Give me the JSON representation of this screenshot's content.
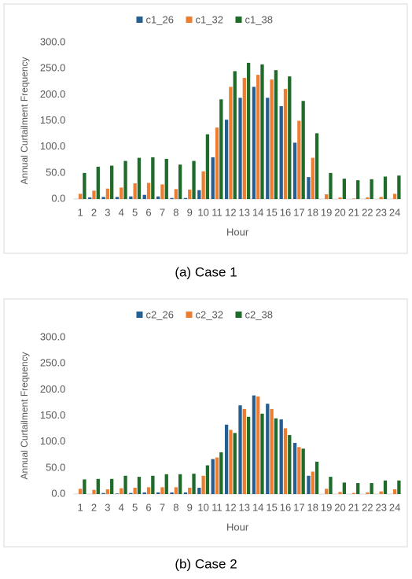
{
  "chart_data": [
    {
      "type": "bar",
      "caption": "(a) Case 1",
      "x_label": "Hour",
      "y_label": "Annual Curtailment Frequency",
      "categories": [
        "1",
        "2",
        "3",
        "4",
        "5",
        "6",
        "7",
        "8",
        "9",
        "10",
        "11",
        "12",
        "13",
        "14",
        "15",
        "16",
        "17",
        "18",
        "19",
        "20",
        "21",
        "22",
        "23",
        "24"
      ],
      "series": [
        {
          "name": "c1_26",
          "color": "#255e91",
          "values": [
            0,
            3,
            4,
            4,
            5,
            8,
            5,
            2,
            2,
            17,
            80,
            152,
            194,
            215,
            194,
            178,
            108,
            42,
            0,
            0,
            0,
            0,
            0,
            0
          ]
        },
        {
          "name": "c1_32",
          "color": "#ed7d31",
          "values": [
            10,
            16,
            20,
            22,
            30,
            31,
            28,
            19,
            18,
            53,
            137,
            215,
            232,
            238,
            229,
            211,
            150,
            79,
            9,
            3,
            1,
            3,
            4,
            10
          ]
        },
        {
          "name": "c1_38",
          "color": "#1e6b2a",
          "values": [
            50,
            62,
            64,
            73,
            79,
            80,
            77,
            66,
            73,
            124,
            191,
            245,
            261,
            258,
            247,
            235,
            188,
            126,
            50,
            39,
            36,
            38,
            43,
            45
          ]
        }
      ],
      "ylim": [
        0,
        300
      ],
      "yticks": [
        {
          "value": 0,
          "label": "0.0"
        },
        {
          "value": 50,
          "label": "50.0"
        },
        {
          "value": 100,
          "label": "100.0"
        },
        {
          "value": 150,
          "label": "150.0"
        },
        {
          "value": 200,
          "label": "200.0"
        },
        {
          "value": 250,
          "label": "250.0"
        },
        {
          "value": 300,
          "label": "300.0"
        }
      ],
      "grid": false,
      "legend": "top"
    },
    {
      "type": "bar",
      "caption": "(b) Case 2",
      "x_label": "Hour",
      "y_label": "Annual Curtailment Frequency",
      "categories": [
        "1",
        "2",
        "3",
        "4",
        "5",
        "6",
        "7",
        "8",
        "9",
        "10",
        "11",
        "12",
        "13",
        "14",
        "15",
        "16",
        "17",
        "18",
        "19",
        "20",
        "21",
        "22",
        "23",
        "24"
      ],
      "series": [
        {
          "name": "c2_26",
          "color": "#255e91",
          "values": [
            0,
            0,
            2,
            1,
            2,
            3,
            3,
            3,
            3,
            12,
            67,
            133,
            170,
            189,
            173,
            143,
            98,
            35,
            0,
            0,
            0,
            0,
            0,
            0
          ]
        },
        {
          "name": "c2_32",
          "color": "#ed7d31",
          "values": [
            10,
            8,
            9,
            11,
            12,
            13,
            13,
            13,
            12,
            35,
            70,
            123,
            163,
            187,
            163,
            126,
            90,
            43,
            10,
            4,
            2,
            3,
            5,
            9
          ]
        },
        {
          "name": "c2_38",
          "color": "#1e6b2a",
          "values": [
            28,
            29,
            29,
            35,
            33,
            35,
            38,
            38,
            39,
            55,
            80,
            117,
            148,
            154,
            145,
            113,
            87,
            62,
            33,
            22,
            21,
            21,
            26,
            26
          ]
        }
      ],
      "ylim": [
        0,
        300
      ],
      "yticks": [
        {
          "value": 0,
          "label": "0.0"
        },
        {
          "value": 50,
          "label": "50.0"
        },
        {
          "value": 100,
          "label": "100.0"
        },
        {
          "value": 150,
          "label": "150.0"
        },
        {
          "value": 200,
          "label": "200.0"
        },
        {
          "value": 250,
          "label": "250.0"
        },
        {
          "value": 300,
          "label": "300.0"
        }
      ],
      "grid": false,
      "legend": "top"
    }
  ]
}
